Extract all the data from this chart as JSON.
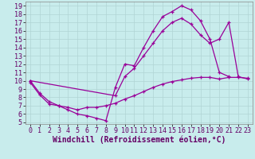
{
  "xlabel": "Windchill (Refroidissement éolien,°C)",
  "bg_color": "#c8ecec",
  "grid_color": "#b0d4d4",
  "line_color": "#990099",
  "xlim": [
    -0.5,
    23.5
  ],
  "ylim": [
    4.8,
    19.5
  ],
  "xticks": [
    0,
    1,
    2,
    3,
    4,
    5,
    6,
    7,
    8,
    9,
    10,
    11,
    12,
    13,
    14,
    15,
    16,
    17,
    18,
    19,
    20,
    21,
    22,
    23
  ],
  "yticks": [
    5,
    6,
    7,
    8,
    9,
    10,
    11,
    12,
    13,
    14,
    15,
    16,
    17,
    18,
    19
  ],
  "curve1_x": [
    0,
    1,
    2,
    3,
    4,
    5,
    6,
    7,
    8,
    9,
    10,
    11,
    12,
    13,
    14,
    15,
    16,
    17,
    18,
    19,
    20,
    21
  ],
  "curve1_y": [
    10,
    8.5,
    7.5,
    7.0,
    6.5,
    6.0,
    5.8,
    5.5,
    5.2,
    9.2,
    12.0,
    11.8,
    14.0,
    16.0,
    17.7,
    18.3,
    19.0,
    18.5,
    17.2,
    15.0,
    11.0,
    10.5
  ],
  "curve2_x": [
    0,
    9,
    10,
    11,
    12,
    13,
    14,
    15,
    16,
    17,
    18,
    19,
    20,
    21,
    22,
    23
  ],
  "curve2_y": [
    10,
    8.2,
    10.5,
    11.5,
    13.0,
    14.5,
    16.0,
    17.0,
    17.5,
    16.8,
    15.5,
    14.5,
    15.0,
    17.0,
    10.5,
    10.2
  ],
  "curve3_x": [
    0,
    1,
    2,
    3,
    4,
    5,
    6,
    7,
    8,
    9,
    10,
    11,
    12,
    13,
    14,
    15,
    16,
    17,
    18,
    19,
    20,
    21,
    22,
    23
  ],
  "curve3_y": [
    9.8,
    8.3,
    7.2,
    7.0,
    6.8,
    6.5,
    6.8,
    6.8,
    7.0,
    7.3,
    7.8,
    8.2,
    8.7,
    9.2,
    9.6,
    9.9,
    10.1,
    10.3,
    10.4,
    10.4,
    10.2,
    10.4,
    10.4,
    10.3
  ],
  "font_size_label": 7,
  "font_size_tick": 6
}
